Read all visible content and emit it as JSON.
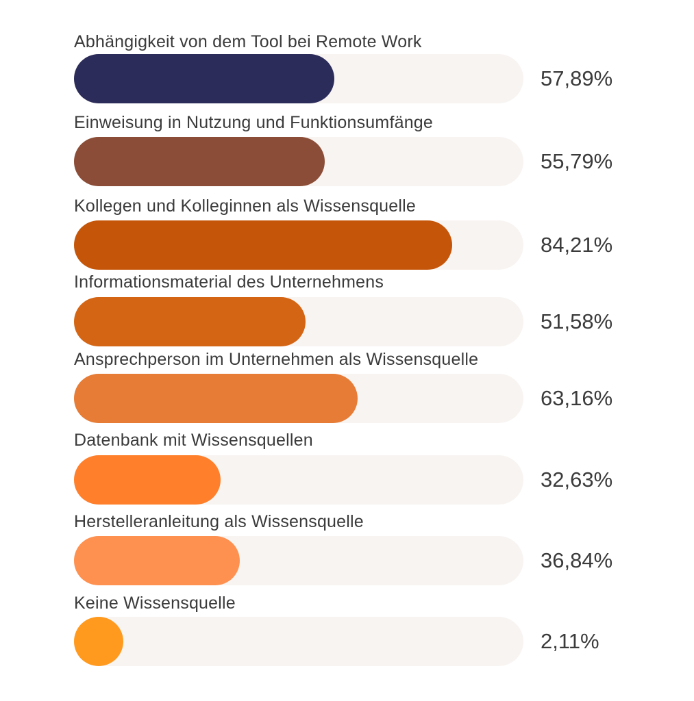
{
  "chart_data": {
    "type": "bar",
    "orientation": "horizontal",
    "xlim": [
      0,
      100
    ],
    "unit": "%",
    "grid": false,
    "categories": [
      "Abhängigkeit von dem Tool bei Remote Work",
      "Einweisung in Nutzung und Funktionsumfänge",
      "Kollegen und Kolleginnen als Wissensquelle",
      "Informationsmaterial des Unternehmens",
      "Ansprechperson im Unternehmen als Wissensquelle",
      "Datenbank mit Wissensquellen",
      "Herstelleranleitung als Wissensquelle",
      "Keine Wissensquelle"
    ],
    "values": [
      57.89,
      55.79,
      84.21,
      51.58,
      63.16,
      32.63,
      36.84,
      2.11
    ],
    "value_labels": [
      "57,89%",
      "55,79%",
      "84,21%",
      "51,58%",
      "63,16%",
      "32,63%",
      "36,84%",
      "2,11%"
    ],
    "colors": [
      "#2c2c5a",
      "#8b4d37",
      "#c55508",
      "#d46514",
      "#e67c36",
      "#ff7f2a",
      "#ff9150",
      "#ff9a1f"
    ],
    "track_color": "#f8f4f2"
  }
}
